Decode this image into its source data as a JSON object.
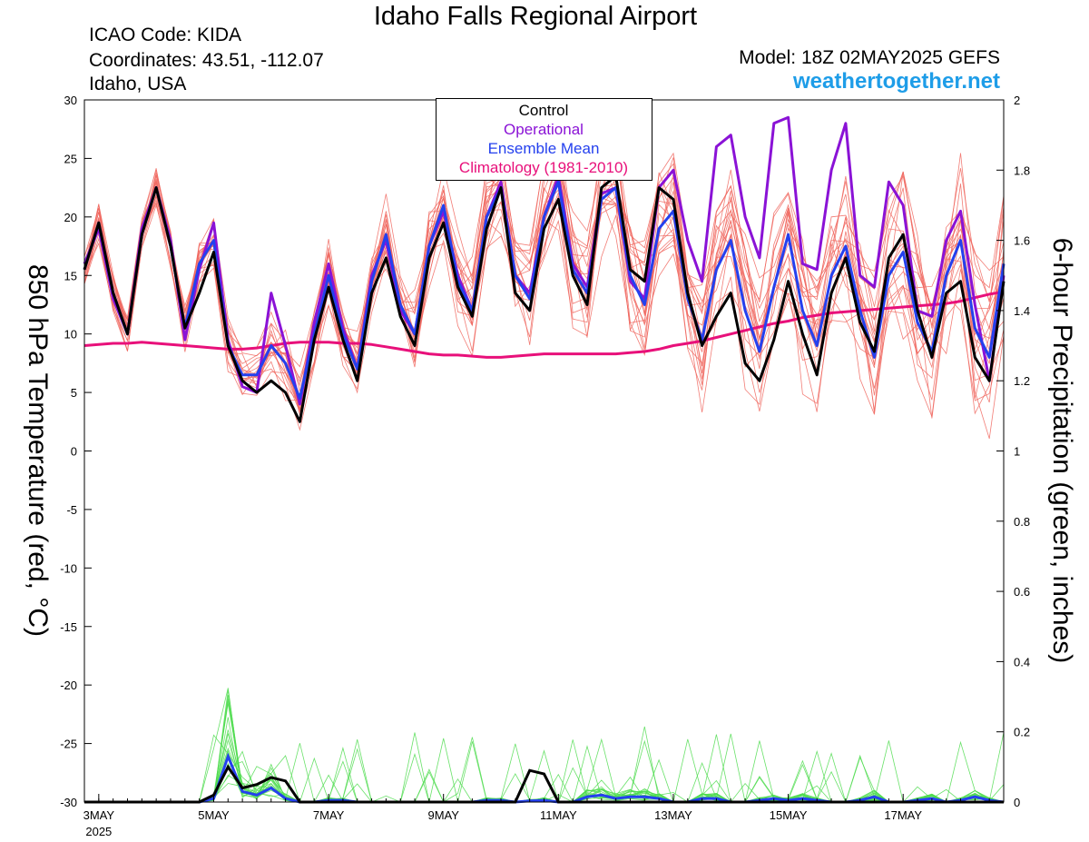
{
  "header": {
    "title": "Idaho Falls Regional Airport",
    "icao": "ICAO Code: KIDA",
    "coordinates": "Coordinates: 43.51, -112.07",
    "region": "Idaho, USA",
    "model": "Model: 18Z 02MAY2025 GEFS",
    "brand": "weathertogether.net"
  },
  "colors": {
    "members_temp": "#f0665e",
    "members_precip": "#4fdc4f",
    "control": "#000000",
    "operational": "#8a12d6",
    "ensemble_mean": "#2440ee",
    "climatology": "#e8107a",
    "brand": "#1e9de8"
  },
  "chart_data": {
    "type": "line",
    "xlabel": "",
    "ylabel": "850 hPa Temperature (red, °C)",
    "y2label": "6-hour Precipitation (green, inches)",
    "ylim": [
      -30,
      30
    ],
    "y2lim": [
      0,
      2
    ],
    "yticks": [
      "30",
      "25",
      "20",
      "15",
      "10",
      "5",
      "0",
      "-5",
      "-10",
      "-15",
      "-20",
      "-25",
      "-30"
    ],
    "y2ticks": [
      "2",
      "1.8",
      "1.6",
      "1.4",
      "1.2",
      "1",
      "0.8",
      "0.6",
      "0.4",
      "0.2",
      "0"
    ],
    "x_tick_labels": [
      "3MAY",
      "5MAY",
      "7MAY",
      "9MAY",
      "11MAY",
      "13MAY",
      "15MAY",
      "17MAY"
    ],
    "x_tick_days": [
      0,
      2,
      4,
      6,
      8,
      10,
      12,
      14
    ],
    "year_label": "2025",
    "x_range_days": [
      -0.25,
      15.75
    ],
    "x_step_days": 0.25,
    "legend": [
      "Control",
      "Operational",
      "Ensemble Mean",
      "Climatology (1981-2010)"
    ],
    "temperature_series": [
      {
        "name": "Control",
        "values": [
          15.5,
          19.5,
          13.5,
          10,
          18.5,
          22.5,
          17.5,
          10.5,
          13.5,
          17,
          9,
          6,
          5,
          6,
          5,
          2.5,
          9.5,
          14,
          9.5,
          6,
          13.5,
          16.5,
          11.5,
          9,
          16.5,
          19.5,
          14,
          11.5,
          19,
          22.5,
          13.5,
          12,
          19,
          21.5,
          15,
          12.5,
          22.5,
          23.5,
          15.5,
          14.5,
          22.5,
          21.5,
          13.5,
          9,
          11.5,
          13.5,
          7.5,
          6,
          9.5,
          14.5,
          10,
          6.5,
          13.5,
          16.5,
          11,
          8.5,
          16.5,
          18.5,
          12,
          8,
          13.5,
          14.5,
          8,
          6,
          14.5
        ]
      },
      {
        "name": "Operational",
        "values": [
          16,
          19,
          13,
          10,
          19,
          22.5,
          18,
          9.5,
          15.5,
          19.5,
          9.5,
          5.5,
          5,
          13.5,
          9,
          4,
          11,
          16,
          10.5,
          7,
          15,
          18,
          12,
          10,
          17.5,
          20.5,
          15,
          12,
          20,
          23,
          15,
          13.5,
          20,
          23.5,
          16,
          14,
          22,
          22.5,
          14.5,
          13,
          22.5,
          24,
          18,
          14.5,
          26,
          27,
          20,
          16.5,
          28,
          28.5,
          16,
          15.5,
          24,
          28,
          15,
          14,
          23,
          21,
          12,
          11.5,
          18,
          20.5,
          12.5,
          6,
          15
        ]
      },
      {
        "name": "Ensemble Mean",
        "values": [
          15.5,
          19.5,
          13.5,
          10,
          18.5,
          22.5,
          17.5,
          10.5,
          16,
          18,
          9,
          6.5,
          6.5,
          9,
          7.5,
          4.5,
          10,
          15,
          10,
          7,
          14.5,
          18.5,
          12.5,
          10,
          17.5,
          21,
          14.5,
          12,
          20,
          22.5,
          15,
          13,
          20,
          23,
          15.5,
          13.5,
          21.5,
          22.5,
          15,
          12.5,
          19,
          20.5,
          13,
          9.5,
          15.5,
          18,
          12,
          8.5,
          14,
          18.5,
          12,
          9,
          15,
          17.5,
          12,
          8,
          15,
          17,
          11,
          8.5,
          15,
          18,
          10.5,
          8,
          16
        ]
      },
      {
        "name": "Climatology (1981-2010)",
        "values": [
          9,
          9.1,
          9.2,
          9.2,
          9.3,
          9.2,
          9.1,
          9,
          8.9,
          8.8,
          8.7,
          8.7,
          8.8,
          9,
          9.2,
          9.3,
          9.3,
          9.3,
          9.2,
          9.2,
          9.1,
          8.9,
          8.7,
          8.5,
          8.3,
          8.2,
          8.2,
          8.1,
          8,
          8,
          8.1,
          8.2,
          8.3,
          8.3,
          8.3,
          8.3,
          8.3,
          8.3,
          8.4,
          8.5,
          8.7,
          9,
          9.2,
          9.4,
          9.7,
          10,
          10.3,
          10.6,
          10.9,
          11.1,
          11.4,
          11.6,
          11.8,
          11.9,
          12,
          12.1,
          12.2,
          12.3,
          12.4,
          12.5,
          12.6,
          12.8,
          13.1,
          13.4,
          13.6
        ]
      }
    ],
    "precipitation_series": [
      {
        "name": "Control",
        "values": [
          0,
          0,
          0,
          0,
          0,
          0,
          0,
          0,
          0,
          0.02,
          0.1,
          0.04,
          0.05,
          0.07,
          0.06,
          0,
          0,
          0,
          0,
          0,
          0,
          0,
          0,
          0,
          0,
          0,
          0,
          0,
          0,
          0,
          0,
          0.09,
          0.08,
          0,
          0,
          0,
          0,
          0,
          0,
          0,
          0,
          0,
          0,
          0,
          0,
          0,
          0,
          0,
          0,
          0,
          0,
          0,
          0,
          0,
          0,
          0,
          0,
          0,
          0,
          0,
          0,
          0,
          0,
          0,
          0
        ]
      },
      {
        "name": "Ensemble Mean",
        "values": [
          0,
          0,
          0,
          0,
          0,
          0,
          0,
          0,
          0,
          0.01,
          0.13,
          0.03,
          0.02,
          0.04,
          0.01,
          0,
          0,
          0.005,
          0.005,
          0,
          0,
          0,
          0,
          0,
          0,
          0,
          0,
          0,
          0.005,
          0.005,
          0,
          0.003,
          0.005,
          0,
          0,
          0.015,
          0.02,
          0.01,
          0.015,
          0.015,
          0.01,
          0,
          0,
          0.01,
          0.01,
          0,
          0,
          0.005,
          0.01,
          0.005,
          0.01,
          0.005,
          0,
          0,
          0.005,
          0.015,
          0,
          0,
          0.005,
          0.01,
          0,
          0.005,
          0.015,
          0.005,
          0
        ]
      }
    ]
  }
}
